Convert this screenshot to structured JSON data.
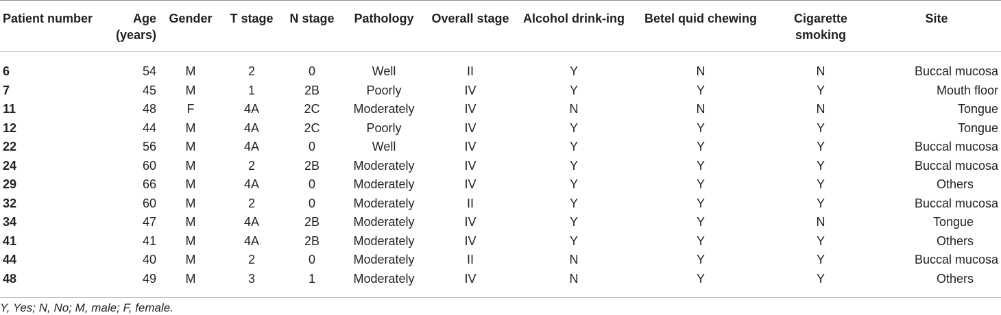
{
  "headers": {
    "patient": "Patient number",
    "age": "Age (years)",
    "gender": "Gender",
    "t_stage": "T stage",
    "n_stage": "N stage",
    "pathology": "Pathology",
    "overall": "Overall stage",
    "alcohol": "Alcohol drink-ing",
    "betel": "Betel quid chewing",
    "cigarette": "Cigarette smoking",
    "site": "Site"
  },
  "rows": [
    {
      "patient": "6",
      "age": "54",
      "gender": "M",
      "t": "2",
      "n": "0",
      "pathology": "Well",
      "overall": "II",
      "alcohol": "Y",
      "betel": "N",
      "cigarette": "N",
      "site": "Buccal mucosa"
    },
    {
      "patient": "7",
      "age": "45",
      "gender": "M",
      "t": "1",
      "n": "2B",
      "pathology": "Poorly",
      "overall": "IV",
      "alcohol": "Y",
      "betel": "Y",
      "cigarette": "Y",
      "site": "Mouth floor"
    },
    {
      "patient": "11",
      "age": "48",
      "gender": "F",
      "t": "4A",
      "n": "2C",
      "pathology": "Moderately",
      "overall": "IV",
      "alcohol": "N",
      "betel": "N",
      "cigarette": "N",
      "site": "Tongue"
    },
    {
      "patient": "12",
      "age": "44",
      "gender": "M",
      "t": "4A",
      "n": "2C",
      "pathology": "Poorly",
      "overall": "IV",
      "alcohol": "Y",
      "betel": "Y",
      "cigarette": "Y",
      "site": "Tongue"
    },
    {
      "patient": "22",
      "age": "56",
      "gender": "M",
      "t": "4A",
      "n": "0",
      "pathology": "Well",
      "overall": "IV",
      "alcohol": "Y",
      "betel": "Y",
      "cigarette": "Y",
      "site": "Buccal mucosa"
    },
    {
      "patient": "24",
      "age": "60",
      "gender": "M",
      "t": "2",
      "n": "2B",
      "pathology": "Moderately",
      "overall": "IV",
      "alcohol": "Y",
      "betel": "Y",
      "cigarette": "Y",
      "site": "Buccal mucosa"
    },
    {
      "patient": "29",
      "age": "66",
      "gender": "M",
      "t": "4A",
      "n": "0",
      "pathology": "Moderately",
      "overall": "IV",
      "alcohol": "Y",
      "betel": "Y",
      "cigarette": "Y",
      "site": "Others"
    },
    {
      "patient": "32",
      "age": "60",
      "gender": "M",
      "t": "2",
      "n": "0",
      "pathology": "Moderately",
      "overall": "II",
      "alcohol": "Y",
      "betel": "Y",
      "cigarette": "Y",
      "site": "Buccal mucosa"
    },
    {
      "patient": "34",
      "age": "47",
      "gender": "M",
      "t": "4A",
      "n": "2B",
      "pathology": "Moderately",
      "overall": "IV",
      "alcohol": "Y",
      "betel": "Y",
      "cigarette": "N",
      "site": "Tongue"
    },
    {
      "patient": "41",
      "age": "41",
      "gender": "M",
      "t": "4A",
      "n": "2B",
      "pathology": "Moderately",
      "overall": "IV",
      "alcohol": "Y",
      "betel": "Y",
      "cigarette": "Y",
      "site": "Others"
    },
    {
      "patient": "44",
      "age": "40",
      "gender": "M",
      "t": "2",
      "n": "0",
      "pathology": "Moderately",
      "overall": "II",
      "alcohol": "N",
      "betel": "Y",
      "cigarette": "Y",
      "site": "Buccal mucosa"
    },
    {
      "patient": "48",
      "age": "49",
      "gender": "M",
      "t": "3",
      "n": "1",
      "pathology": "Moderately",
      "overall": "IV",
      "alcohol": "N",
      "betel": "Y",
      "cigarette": "Y",
      "site": "Others"
    }
  ],
  "footnote": "Y, Yes; N, No; M, male; F, female."
}
